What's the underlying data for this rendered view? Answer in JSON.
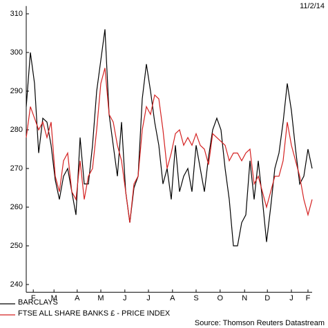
{
  "chart_data": {
    "type": "line",
    "date": "11/2/14",
    "source": "Source: Thomson Reuters Datastream",
    "xlim": [
      0,
      69
    ],
    "xticks": [
      {
        "value": 1.7,
        "label": "F"
      },
      {
        "value": 6.7,
        "label": "M"
      },
      {
        "value": 12.3,
        "label": "A"
      },
      {
        "value": 18,
        "label": "M"
      },
      {
        "value": 23.8,
        "label": "J"
      },
      {
        "value": 29.5,
        "label": "J"
      },
      {
        "value": 35.3,
        "label": "A"
      },
      {
        "value": 41,
        "label": "S"
      },
      {
        "value": 46.8,
        "label": "O"
      },
      {
        "value": 52.7,
        "label": "N"
      },
      {
        "value": 58.2,
        "label": "D"
      },
      {
        "value": 64,
        "label": "J"
      },
      {
        "value": 68,
        "label": "F"
      }
    ],
    "ylim": [
      238,
      312
    ],
    "yticks": [
      240,
      250,
      260,
      270,
      280,
      290,
      300,
      310
    ],
    "series": [
      {
        "name": "BARCLAYS",
        "color": "#000000",
        "values": [
          286,
          300,
          292,
          274,
          283,
          282,
          276,
          267,
          262,
          268,
          270,
          264,
          258,
          278,
          266,
          266,
          276,
          290,
          298,
          306,
          284,
          276,
          268,
          282,
          264,
          256,
          265,
          268,
          288,
          297,
          290,
          282,
          276,
          266,
          270,
          262,
          276,
          264,
          268,
          270,
          264,
          276,
          270,
          264,
          273,
          280,
          283,
          280,
          270,
          262,
          250,
          250,
          256,
          258,
          272,
          262,
          272,
          262,
          251,
          260,
          270,
          274,
          282,
          292,
          285,
          275,
          266,
          268,
          275,
          270
        ]
      },
      {
        "name": "FTSE ALL SHARE BANKS £ - PRICE INDEX",
        "color": "#d42020",
        "values": [
          278,
          286,
          283,
          280,
          282,
          278,
          282,
          268,
          264,
          272,
          274,
          264,
          262,
          272,
          262,
          268,
          270,
          280,
          292,
          296,
          284,
          282,
          276,
          272,
          264,
          256,
          266,
          268,
          280,
          286,
          284,
          289,
          288,
          280,
          270,
          274,
          279,
          280,
          276,
          278,
          276,
          279,
          276,
          275,
          271,
          279,
          278,
          277,
          276,
          272,
          274,
          274,
          272,
          274,
          275,
          266,
          268,
          264,
          260,
          264,
          268,
          268,
          272,
          282,
          276,
          272,
          268,
          262,
          258,
          262
        ]
      }
    ]
  }
}
